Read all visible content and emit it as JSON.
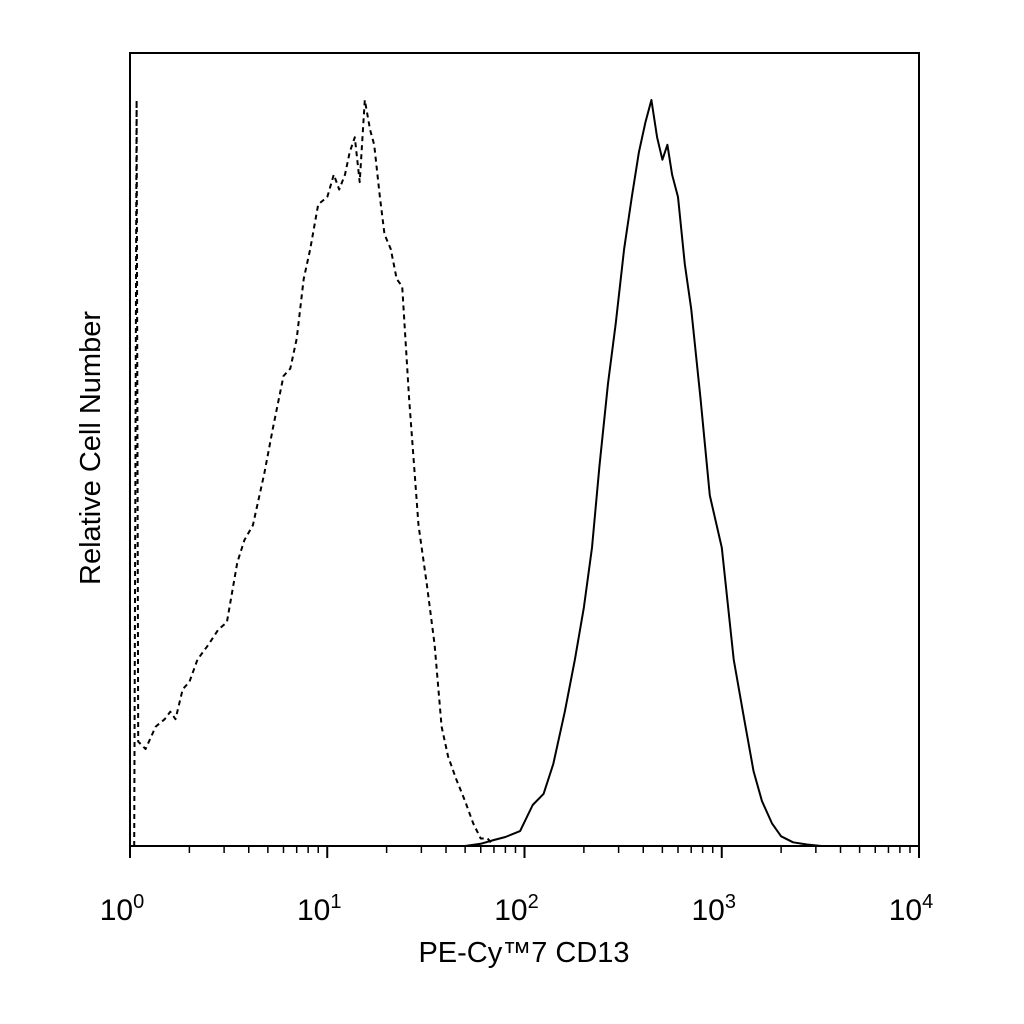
{
  "chart_data": {
    "type": "line",
    "xlabel": "PE-Cy™7 CD13",
    "ylabel": "Relative Cell Number",
    "x_scale": "log",
    "xlim": [
      1,
      10000
    ],
    "ylim": [
      0,
      1.0
    ],
    "grid": false,
    "x_ticks": [
      {
        "base": "10",
        "exp": "0"
      },
      {
        "base": "10",
        "exp": "1"
      },
      {
        "base": "10",
        "exp": "2"
      },
      {
        "base": "10",
        "exp": "3"
      },
      {
        "base": "10",
        "exp": "4"
      }
    ],
    "series": [
      {
        "style": "dashed",
        "x": [
          1.05,
          1.08,
          1.1,
          1.2,
          1.35,
          1.5,
          1.6,
          1.7,
          1.85,
          2.0,
          2.2,
          2.5,
          2.8,
          3.1,
          3.5,
          3.8,
          4.2,
          4.8,
          5.3,
          6.0,
          6.5,
          7.0,
          7.6,
          8.2,
          9.0,
          10.0,
          10.8,
          11.5,
          12.3,
          13.0,
          13.8,
          14.6,
          15.5,
          16.5,
          17.3,
          18.5,
          19.5,
          21.0,
          22.5,
          24.0,
          26.0,
          29.0,
          32.0,
          35.0,
          38.0,
          41.0,
          45.0,
          50.0,
          55.0,
          60.0,
          65.0,
          70.0,
          80.0,
          100.0,
          200.0,
          1000.0,
          10000.0
        ],
        "y": [
          0.0,
          1.0,
          0.14,
          0.13,
          0.16,
          0.17,
          0.18,
          0.17,
          0.21,
          0.22,
          0.25,
          0.27,
          0.29,
          0.3,
          0.38,
          0.41,
          0.43,
          0.5,
          0.56,
          0.63,
          0.64,
          0.68,
          0.76,
          0.8,
          0.86,
          0.87,
          0.9,
          0.88,
          0.9,
          0.93,
          0.95,
          0.89,
          1.0,
          0.96,
          0.94,
          0.87,
          0.82,
          0.8,
          0.76,
          0.75,
          0.6,
          0.43,
          0.35,
          0.27,
          0.16,
          0.12,
          0.09,
          0.06,
          0.03,
          0.01,
          0.01,
          0.0,
          0.0,
          0.0,
          0.0,
          0.0,
          0.0
        ]
      },
      {
        "style": "solid",
        "x": [
          1.0,
          10.0,
          50.0,
          60.0,
          70.0,
          80.0,
          95.0,
          110.0,
          125.0,
          140.0,
          160.0,
          180.0,
          200.0,
          220.0,
          240.0,
          265.0,
          290.0,
          320.0,
          350.0,
          380.0,
          410.0,
          440.0,
          470.0,
          500.0,
          530.0,
          560.0,
          600.0,
          650.0,
          700.0,
          780.0,
          870.0,
          1000.0,
          1150.0,
          1300.0,
          1450.0,
          1600.0,
          1800.0,
          2000.0,
          2300.0,
          2700.0,
          3200.0,
          4000.0,
          10000.0
        ],
        "y": [
          0.0,
          0.0,
          0.0,
          0.003,
          0.008,
          0.012,
          0.02,
          0.055,
          0.07,
          0.11,
          0.18,
          0.25,
          0.32,
          0.4,
          0.51,
          0.62,
          0.7,
          0.8,
          0.87,
          0.93,
          0.97,
          1.0,
          0.95,
          0.92,
          0.94,
          0.9,
          0.87,
          0.78,
          0.72,
          0.6,
          0.47,
          0.4,
          0.25,
          0.17,
          0.1,
          0.06,
          0.03,
          0.013,
          0.005,
          0.002,
          0.0,
          0.0,
          0.0
        ]
      }
    ]
  }
}
